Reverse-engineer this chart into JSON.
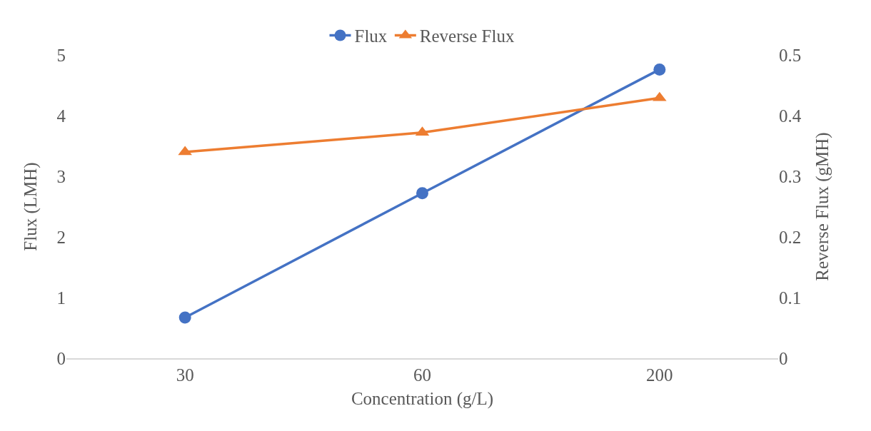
{
  "chart_data": {
    "type": "line",
    "xlabel": "Concentration (g/L)",
    "ylabel": "Flux (LMH)",
    "y2label": "Reverse Flux (gMH)",
    "categories": [
      "30",
      "60",
      "200"
    ],
    "series": [
      {
        "name": "Flux",
        "color": "#4472c4",
        "values": [
          0.67,
          2.72,
          4.76
        ],
        "marker": "circle"
      },
      {
        "name": "Reverse Flux",
        "color": "#ed7d31",
        "values": [
          0.34,
          0.372,
          0.429
        ],
        "marker": "triangle",
        "axis": "y2"
      }
    ],
    "ylim": [
      0,
      5
    ],
    "yticks": [
      0,
      1,
      2,
      3,
      4,
      5
    ],
    "y2lim": [
      0,
      0.5
    ],
    "y2ticks": [
      0,
      0.1,
      0.2,
      0.3,
      0.4,
      0.5
    ],
    "grid": false,
    "legend": "top"
  }
}
